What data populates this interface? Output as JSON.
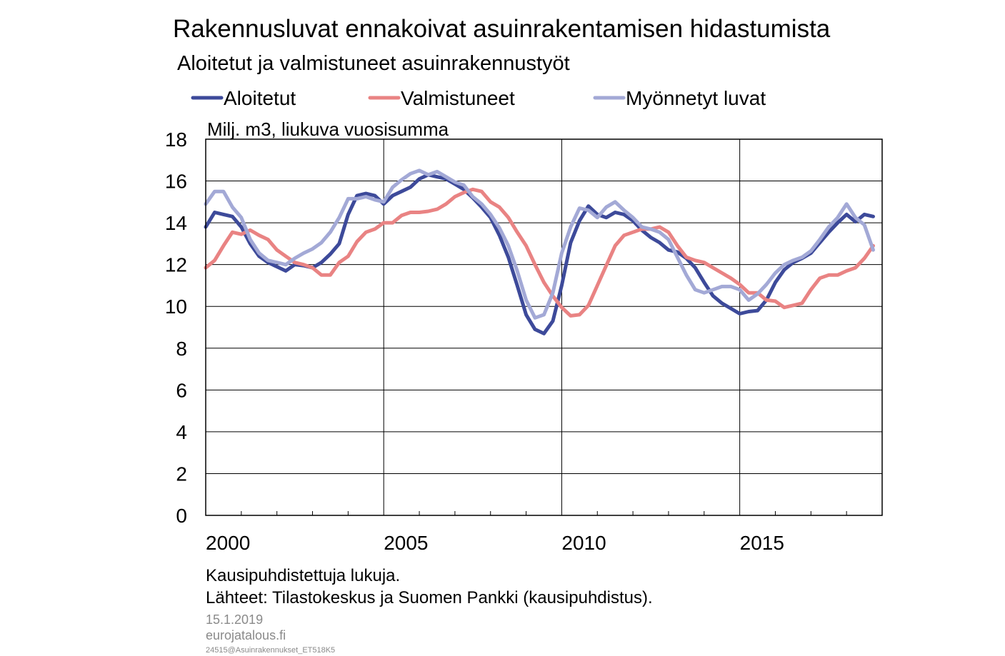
{
  "chart_data": {
    "type": "line",
    "title": "Rakennusluvat ennakoivat asuinrakentamisen hidastumista",
    "subtitle": "Aloitetut ja valmistuneet asuinrakennustyöt",
    "ylabel": "Milj. m3, liukuva vuosisumma",
    "notes": [
      "Kausipuhdistettuja lukuja.",
      "Lähteet: Tilastokeskus ja Suomen Pankki (kausipuhdistus)."
    ],
    "date": "15.1.2019",
    "source_site": "eurojatalous.fi",
    "code": "24515@Asuinrakennukset_ET518K5",
    "x": [
      2000,
      2000.25,
      2000.5,
      2000.75,
      2001,
      2001.25,
      2001.5,
      2001.75,
      2002,
      2002.25,
      2002.5,
      2002.75,
      2003,
      2003.25,
      2003.5,
      2003.75,
      2004,
      2004.25,
      2004.5,
      2004.75,
      2005,
      2005.25,
      2005.5,
      2005.75,
      2006,
      2006.25,
      2006.5,
      2006.75,
      2007,
      2007.25,
      2007.5,
      2007.75,
      2008,
      2008.25,
      2008.5,
      2008.75,
      2009,
      2009.25,
      2009.5,
      2009.75,
      2010,
      2010.25,
      2010.5,
      2010.75,
      2011,
      2011.25,
      2011.5,
      2011.75,
      2012,
      2012.25,
      2012.5,
      2012.75,
      2013,
      2013.25,
      2013.5,
      2013.75,
      2014,
      2014.25,
      2014.5,
      2014.75,
      2015,
      2015.25,
      2015.5,
      2015.75,
      2016,
      2016.25,
      2016.5,
      2016.75,
      2017,
      2017.25,
      2017.5,
      2017.75,
      2018,
      2018.25,
      2018.5,
      2018.75
    ],
    "series": [
      {
        "name": "Aloitetut",
        "color": "#3d4a9a",
        "values": [
          13.8,
          14.5,
          14.4,
          14.3,
          13.8,
          13.0,
          12.4,
          12.1,
          11.9,
          11.7,
          12.0,
          11.95,
          11.85,
          12.1,
          12.5,
          13.0,
          14.4,
          15.3,
          15.4,
          15.3,
          14.9,
          15.3,
          15.5,
          15.7,
          16.1,
          16.3,
          16.2,
          16.1,
          15.85,
          15.6,
          15.2,
          14.75,
          14.25,
          13.4,
          12.35,
          11.0,
          9.6,
          8.9,
          8.7,
          9.3,
          11.0,
          13.05,
          14.1,
          14.8,
          14.4,
          14.25,
          14.5,
          14.4,
          14.1,
          13.65,
          13.3,
          13.05,
          12.7,
          12.6,
          12.3,
          11.85,
          11.15,
          10.5,
          10.15,
          9.9,
          9.65,
          9.75,
          9.8,
          10.3,
          11.15,
          11.75,
          12.1,
          12.3,
          12.55,
          13.05,
          13.55,
          14.0,
          14.4,
          14.05,
          14.4,
          14.3
        ]
      },
      {
        "name": "Valmistuneet",
        "color": "#e98383",
        "values": [
          11.85,
          12.2,
          12.9,
          13.55,
          13.45,
          13.65,
          13.4,
          13.2,
          12.7,
          12.4,
          12.1,
          12.0,
          11.85,
          11.5,
          11.5,
          12.1,
          12.4,
          13.1,
          13.55,
          13.7,
          14.0,
          14.0,
          14.35,
          14.5,
          14.5,
          14.55,
          14.65,
          14.9,
          15.25,
          15.45,
          15.6,
          15.5,
          15.0,
          14.75,
          14.25,
          13.55,
          12.9,
          12.0,
          11.15,
          10.5,
          9.95,
          9.55,
          9.6,
          10.05,
          11.0,
          11.95,
          12.9,
          13.4,
          13.55,
          13.7,
          13.7,
          13.8,
          13.55,
          12.9,
          12.35,
          12.2,
          12.1,
          11.85,
          11.6,
          11.35,
          11.05,
          10.65,
          10.65,
          10.3,
          10.25,
          9.95,
          10.05,
          10.15,
          10.8,
          11.35,
          11.5,
          11.5,
          11.7,
          11.85,
          12.3,
          12.9
        ]
      },
      {
        "name": "Myönnetyt luvat",
        "color": "#a3a9d6",
        "values": [
          14.9,
          15.5,
          15.5,
          14.75,
          14.25,
          13.2,
          12.55,
          12.2,
          12.1,
          12.0,
          12.3,
          12.55,
          12.75,
          13.05,
          13.55,
          14.25,
          15.15,
          15.15,
          15.25,
          15.1,
          15.0,
          15.7,
          16.05,
          16.35,
          16.5,
          16.3,
          16.45,
          16.2,
          15.95,
          15.8,
          15.25,
          14.9,
          14.4,
          13.75,
          12.9,
          11.7,
          10.3,
          9.45,
          9.6,
          10.65,
          12.55,
          13.8,
          14.7,
          14.6,
          14.25,
          14.75,
          15.0,
          14.6,
          14.25,
          13.8,
          13.7,
          13.55,
          13.2,
          12.35,
          11.5,
          10.8,
          10.65,
          10.8,
          10.95,
          10.95,
          10.8,
          10.3,
          10.6,
          11.05,
          11.6,
          12.0,
          12.2,
          12.35,
          12.65,
          13.2,
          13.8,
          14.25,
          14.9,
          14.25,
          13.9,
          12.7
        ]
      }
    ],
    "xlim": [
      2000,
      2019
    ],
    "xticks": [
      2000,
      2005,
      2010,
      2015
    ],
    "xminorticks": [
      2001,
      2002,
      2003,
      2004,
      2006,
      2007,
      2008,
      2009,
      2011,
      2012,
      2013,
      2014,
      2016,
      2017,
      2018
    ],
    "ylim": [
      0,
      18
    ],
    "yticks": [
      0,
      2,
      4,
      6,
      8,
      10,
      12,
      14,
      16,
      18
    ],
    "grid": true
  }
}
